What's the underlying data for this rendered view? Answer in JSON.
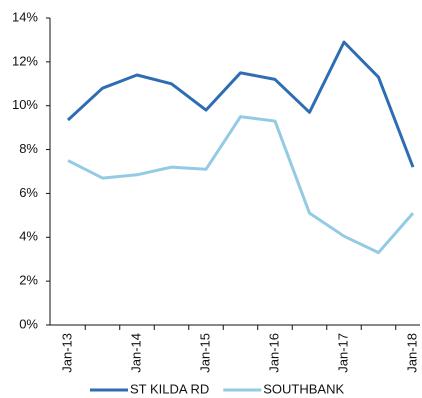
{
  "chart_data": {
    "type": "line",
    "categories": [
      "Jan-13",
      null,
      "Jan-14",
      null,
      "Jan-15",
      null,
      "Jan-16",
      null,
      "Jan-17",
      null,
      "Jan-18"
    ],
    "series": [
      {
        "name": "ST KILDA RD",
        "color": "#2f6db3",
        "values": [
          9.35,
          10.8,
          11.4,
          11.0,
          9.8,
          11.5,
          11.2,
          9.7,
          12.9,
          11.3,
          7.2
        ]
      },
      {
        "name": "SOUTHBANK",
        "color": "#93cbe4",
        "values": [
          7.5,
          6.7,
          6.85,
          7.2,
          7.1,
          9.5,
          9.3,
          5.1,
          4.05,
          3.3,
          5.1
        ]
      }
    ],
    "ylim": [
      0,
      14
    ],
    "yticks": [
      {
        "value": 0,
        "label": "0%"
      },
      {
        "value": 2,
        "label": "2%"
      },
      {
        "value": 4,
        "label": "4%"
      },
      {
        "value": 6,
        "label": "6%"
      },
      {
        "value": 8,
        "label": "8%"
      },
      {
        "value": 10,
        "label": "10%"
      },
      {
        "value": 12,
        "label": "12%"
      },
      {
        "value": 14,
        "label": "14%"
      }
    ],
    "grid": false,
    "legend": "bottom"
  }
}
